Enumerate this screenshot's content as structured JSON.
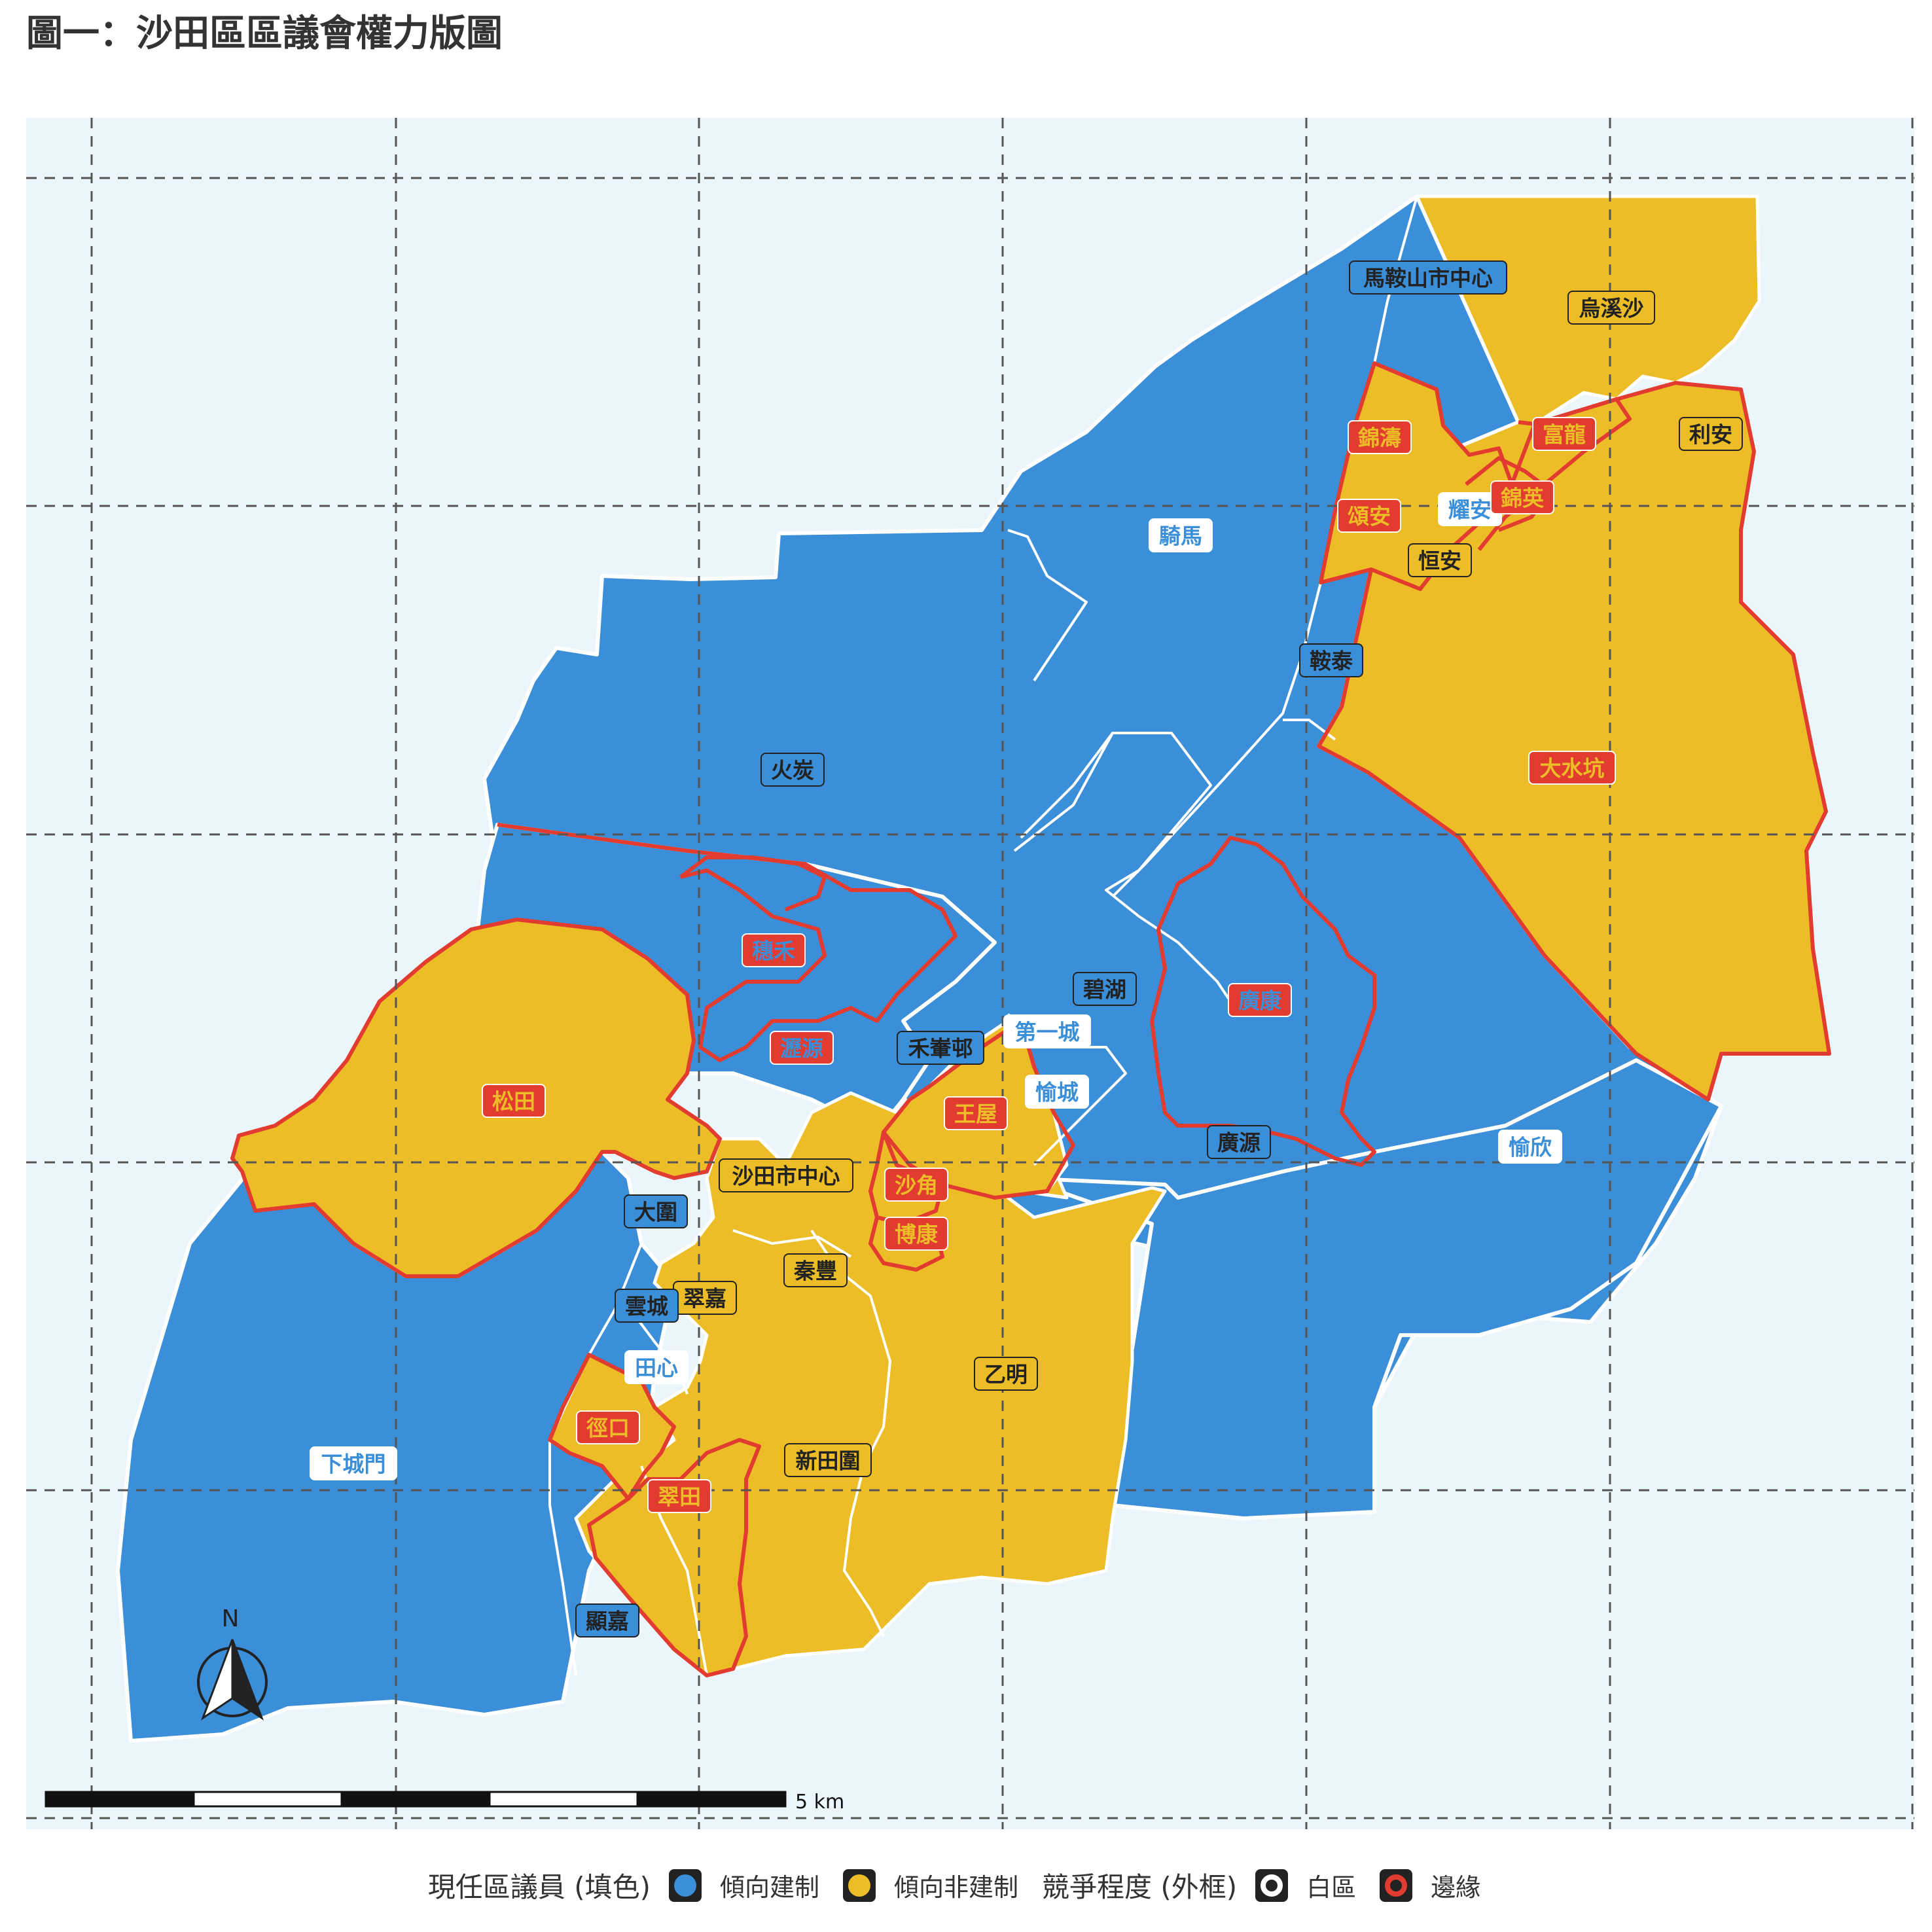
{
  "title": "圖一：沙田區區議會權力版圖",
  "colors": {
    "background": "#ebf5fc",
    "establishment": "#3b8ed8",
    "non_establishment": "#ecbd26",
    "marginal_border": "#e23b30",
    "safe_border": "#ffffff",
    "grid": "#555555"
  },
  "scale": {
    "label": "5 km"
  },
  "north": {
    "label": "N"
  },
  "legend": {
    "incumbent_title": "現任區議員 (填色)",
    "establishment_label": "傾向建制",
    "non_establishment_label": "傾向非建制",
    "competition_title": "競爭程度 (外框)",
    "safe_label": "白區",
    "marginal_label": "邊緣"
  },
  "constituencies": [
    {
      "name": "馬鞍山市中心",
      "lean": "establishment",
      "competition": "safe"
    },
    {
      "name": "烏溪沙",
      "lean": "non_establishment",
      "competition": "safe"
    },
    {
      "name": "錦濤",
      "lean": "non_establishment",
      "competition": "marginal"
    },
    {
      "name": "富龍",
      "lean": "non_establishment",
      "competition": "marginal"
    },
    {
      "name": "利安",
      "lean": "non_establishment",
      "competition": "safe"
    },
    {
      "name": "耀安",
      "lean": "establishment",
      "competition": "safe"
    },
    {
      "name": "錦英",
      "lean": "non_establishment",
      "competition": "marginal"
    },
    {
      "name": "頌安",
      "lean": "non_establishment",
      "competition": "marginal"
    },
    {
      "name": "恒安",
      "lean": "non_establishment",
      "competition": "safe"
    },
    {
      "name": "騎馬",
      "lean": "establishment",
      "competition": "safe"
    },
    {
      "name": "鞍泰",
      "lean": "establishment",
      "competition": "safe"
    },
    {
      "name": "大水坑",
      "lean": "non_establishment",
      "competition": "marginal"
    },
    {
      "name": "火炭",
      "lean": "establishment",
      "competition": "safe"
    },
    {
      "name": "穗禾",
      "lean": "establishment",
      "competition": "marginal"
    },
    {
      "name": "碧湖",
      "lean": "establishment",
      "competition": "safe"
    },
    {
      "name": "廣康",
      "lean": "establishment",
      "competition": "marginal"
    },
    {
      "name": "第一城",
      "lean": "establishment",
      "competition": "safe"
    },
    {
      "name": "瀝源",
      "lean": "establishment",
      "competition": "marginal"
    },
    {
      "name": "禾輋邨",
      "lean": "establishment",
      "competition": "safe"
    },
    {
      "name": "松田",
      "lean": "non_establishment",
      "competition": "marginal"
    },
    {
      "name": "王屋",
      "lean": "non_establishment",
      "competition": "marginal"
    },
    {
      "name": "愉城",
      "lean": "establishment",
      "competition": "safe"
    },
    {
      "name": "廣源",
      "lean": "establishment",
      "competition": "safe"
    },
    {
      "name": "愉欣",
      "lean": "establishment",
      "competition": "safe"
    },
    {
      "name": "沙田市中心",
      "lean": "non_establishment",
      "competition": "safe"
    },
    {
      "name": "沙角",
      "lean": "non_establishment",
      "competition": "marginal"
    },
    {
      "name": "大圍",
      "lean": "establishment",
      "competition": "safe"
    },
    {
      "name": "博康",
      "lean": "non_establishment",
      "competition": "marginal"
    },
    {
      "name": "秦豐",
      "lean": "non_establishment",
      "competition": "safe"
    },
    {
      "name": "翠嘉",
      "lean": "non_establishment",
      "competition": "safe"
    },
    {
      "name": "雲城",
      "lean": "establishment",
      "competition": "safe"
    },
    {
      "name": "田心",
      "lean": "establishment",
      "competition": "safe"
    },
    {
      "name": "乙明",
      "lean": "non_establishment",
      "competition": "safe"
    },
    {
      "name": "徑口",
      "lean": "non_establishment",
      "competition": "marginal"
    },
    {
      "name": "新田圍",
      "lean": "non_establishment",
      "competition": "safe"
    },
    {
      "name": "下城門",
      "lean": "establishment",
      "competition": "safe"
    },
    {
      "name": "翠田",
      "lean": "non_establishment",
      "competition": "marginal"
    },
    {
      "name": "顯嘉",
      "lean": "establishment",
      "competition": "safe"
    }
  ]
}
